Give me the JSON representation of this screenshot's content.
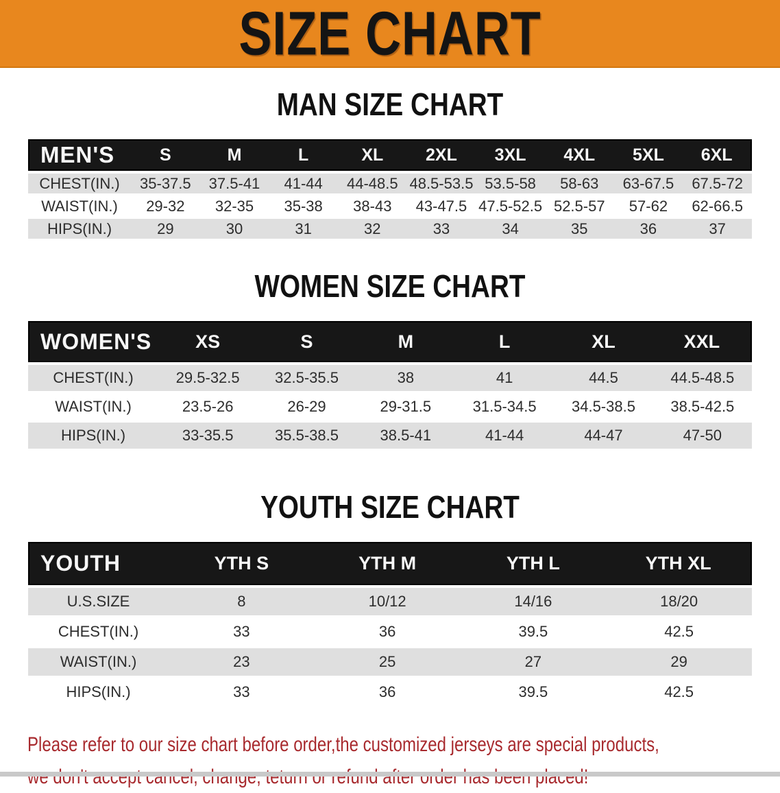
{
  "banner": {
    "title": "SIZE CHART",
    "bg_color": "#e8871e",
    "text_color": "#141414"
  },
  "sections": [
    {
      "heading": "MAN SIZE CHART",
      "table": {
        "corner_label": "MEN'S",
        "columns": [
          "S",
          "M",
          "L",
          "XL",
          "2XL",
          "3XL",
          "4XL",
          "5XL",
          "6XL"
        ],
        "rows": [
          {
            "label": "CHEST(IN.)",
            "values": [
              "35-37.5",
              "37.5-41",
              "41-44",
              "44-48.5",
              "48.5-53.5",
              "53.5-58",
              "58-63",
              "63-67.5",
              "67.5-72"
            ]
          },
          {
            "label": "WAIST(IN.)",
            "values": [
              "29-32",
              "32-35",
              "35-38",
              "38-43",
              "43-47.5",
              "47.5-52.5",
              "52.5-57",
              "57-62",
              "62-66.5"
            ]
          },
          {
            "label": "HIPS(IN.)",
            "values": [
              "29",
              "30",
              "31",
              "32",
              "33",
              "34",
              "35",
              "36",
              "37"
            ]
          }
        ]
      }
    },
    {
      "heading": "WOMEN SIZE CHART",
      "table": {
        "corner_label": "WOMEN'S",
        "columns": [
          "XS",
          "S",
          "M",
          "L",
          "XL",
          "XXL"
        ],
        "rows": [
          {
            "label": "CHEST(IN.)",
            "values": [
              "29.5-32.5",
              "32.5-35.5",
              "38",
              "41",
              "44.5",
              "44.5-48.5"
            ]
          },
          {
            "label": "WAIST(IN.)",
            "values": [
              "23.5-26",
              "26-29",
              "29-31.5",
              "31.5-34.5",
              "34.5-38.5",
              "38.5-42.5"
            ]
          },
          {
            "label": "HIPS(IN.)",
            "values": [
              "33-35.5",
              "35.5-38.5",
              "38.5-41",
              "41-44",
              "44-47",
              "47-50"
            ]
          }
        ]
      }
    },
    {
      "heading": "YOUTH SIZE CHART",
      "table": {
        "corner_label": "YOUTH",
        "columns": [
          "YTH S",
          "YTH M",
          "YTH L",
          "YTH XL"
        ],
        "rows": [
          {
            "label": "U.S.SIZE",
            "values": [
              "8",
              "10/12",
              "14/16",
              "18/20"
            ]
          },
          {
            "label": "CHEST(IN.)",
            "values": [
              "33",
              "36",
              "39.5",
              "42.5"
            ]
          },
          {
            "label": "WAIST(IN.)",
            "values": [
              "23",
              "25",
              "27",
              "29"
            ]
          },
          {
            "label": "HIPS(IN.)",
            "values": [
              "33",
              "36",
              "39.5",
              "42.5"
            ]
          }
        ]
      }
    }
  ],
  "disclaimer": {
    "color": "#a82a2e",
    "lines": [
      "Please refer to our size chart before order,the customized jerseys are special products,",
      "we don't accept cancel, change, teturn or refund after order has been placed!"
    ]
  }
}
